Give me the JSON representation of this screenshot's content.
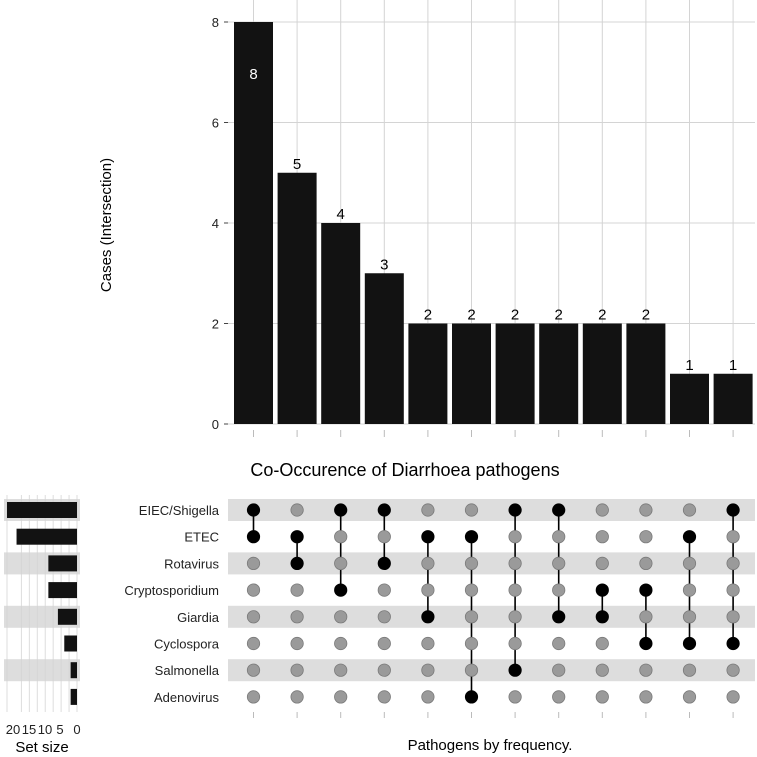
{
  "chart_data": {
    "type": "bar",
    "title": "Co-Occurence of Diarrhoea pathogens",
    "ylabel": "Cases (Intersection)",
    "xlabel": "Pathogens by frequency.",
    "ylim": [
      0,
      8
    ],
    "yticks": [
      0,
      2,
      4,
      6,
      8
    ],
    "intersection_values": [
      8,
      5,
      4,
      3,
      2,
      2,
      2,
      2,
      2,
      2,
      1,
      1
    ],
    "value_labels": [
      "8",
      "5",
      "4",
      "3",
      "2",
      "2",
      "2",
      "2",
      "2",
      "2",
      "1",
      "1"
    ],
    "sets": [
      "EIEC/Shigella",
      "ETEC",
      "Rotavirus",
      "Cryptosporidium",
      "Giardia",
      "Cyclospora",
      "Salmonella",
      "Adenovirus"
    ],
    "set_sizes": [
      22,
      19,
      9,
      9,
      6,
      4,
      2,
      2
    ],
    "set_size_label": "Set size",
    "set_size_xlim": [
      0,
      22
    ],
    "set_size_ticks": [
      20,
      15,
      10,
      5,
      0
    ],
    "set_size_tick_labels": [
      "20",
      "15",
      "10",
      "5",
      "0"
    ],
    "membership": [
      [
        0,
        1
      ],
      [
        1,
        2
      ],
      [
        0,
        3
      ],
      [
        0,
        2
      ],
      [
        1,
        4
      ],
      [
        1,
        7
      ],
      [
        0,
        6
      ],
      [
        0,
        4
      ],
      [
        3,
        4
      ],
      [
        3,
        5
      ],
      [
        1,
        5
      ],
      [
        0,
        5
      ]
    ],
    "colors": {
      "bar": "#121212",
      "active_dot": "#000000",
      "inactive_dot": "#9a9a9a",
      "stripe": "#dddddd",
      "grid": "#d4d4d4",
      "inner_label": "#ffffff"
    }
  }
}
